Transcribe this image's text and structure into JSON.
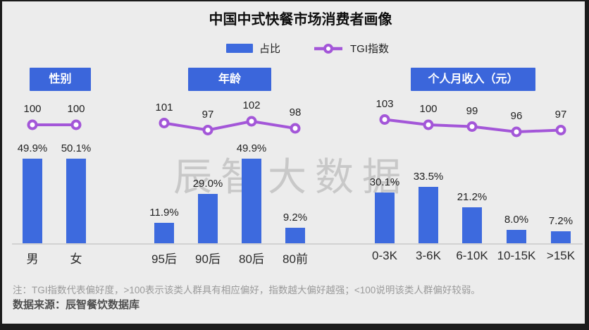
{
  "title": "中国中式快餐市场消费者画像",
  "legend": {
    "bar_label": "占比",
    "line_label": "TGI指数"
  },
  "watermark": "辰智大数据",
  "notes": {
    "note": "注：TGI指数代表偏好度，>100表示该类人群具有相应偏好，指数越大偏好越强；<100说明该类人群偏好较弱。",
    "source": "数据来源：辰智餐饮数据库"
  },
  "colors": {
    "bar": "#3d6ade",
    "header_bg": "#3b66db",
    "header_text": "#ffffff",
    "tgi_line": "#a356d8",
    "marker_fill": "#ffffff",
    "axis": "#d2d2d2",
    "watermark": "#8f8f8f"
  },
  "chart_data": [
    {
      "type": "bar",
      "group": "性别",
      "categories": [
        "男",
        "女"
      ],
      "share_values": [
        49.9,
        50.1
      ],
      "share_labels": [
        "49.9%",
        "50.1%"
      ],
      "tgi_values": [
        100,
        100
      ],
      "tgi_labels": [
        "100",
        "100"
      ],
      "series": [
        {
          "name": "占比",
          "unit": "%",
          "values": [
            49.9,
            50.1
          ]
        },
        {
          "name": "TGI指数",
          "values": [
            100,
            100
          ]
        }
      ]
    },
    {
      "type": "bar",
      "group": "年龄",
      "categories": [
        "95后",
        "90后",
        "80后",
        "80前"
      ],
      "share_values": [
        11.9,
        29.0,
        49.9,
        9.2
      ],
      "share_labels": [
        "11.9%",
        "29.0%",
        "49.9%",
        "9.2%"
      ],
      "tgi_values": [
        101,
        97,
        102,
        98
      ],
      "tgi_labels": [
        "101",
        "97",
        "102",
        "98"
      ],
      "series": [
        {
          "name": "占比",
          "unit": "%",
          "values": [
            11.9,
            29.0,
            49.9,
            9.2
          ]
        },
        {
          "name": "TGI指数",
          "values": [
            101,
            97,
            102,
            98
          ]
        }
      ]
    },
    {
      "type": "bar",
      "group": "个人月收入（元）",
      "categories": [
        "0-3K",
        "3-6K",
        "6-10K",
        "10-15K",
        ">15K"
      ],
      "share_values": [
        30.1,
        33.5,
        21.2,
        8.0,
        7.2
      ],
      "share_labels": [
        "30.1%",
        "33.5%",
        "21.2%",
        "8.0%",
        "7.2%"
      ],
      "tgi_values": [
        103,
        100,
        99,
        96,
        97
      ],
      "tgi_labels": [
        "103",
        "100",
        "99",
        "96",
        "97"
      ],
      "series": [
        {
          "name": "占比",
          "unit": "%",
          "values": [
            30.1,
            33.5,
            21.2,
            8.0,
            7.2
          ]
        },
        {
          "name": "TGI指数",
          "values": [
            103,
            100,
            99,
            96,
            97
          ]
        }
      ]
    }
  ]
}
